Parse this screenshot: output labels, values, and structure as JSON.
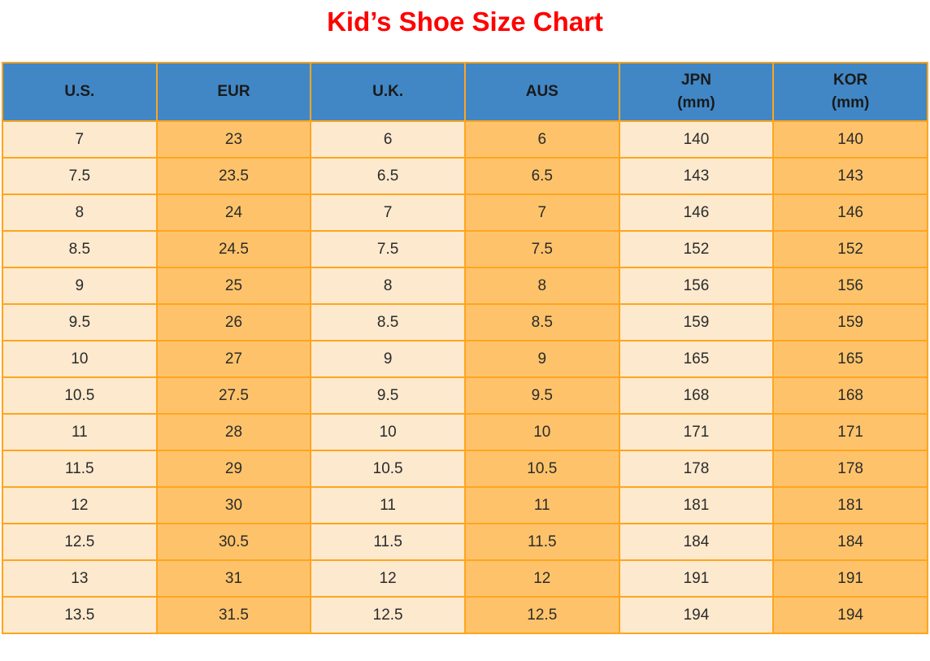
{
  "title": "Kid’s Shoe Size Chart",
  "colors": {
    "title_red": "#FF0000",
    "header_blue": "#4187C6",
    "cell_light": "#FCE9CE",
    "cell_orange": "#FEC36A",
    "border_orange": "#FFA51E",
    "header_text": "#1A1A1A",
    "cell_text": "#2B2B2B"
  },
  "chart_data": {
    "type": "table",
    "title": "Kid’s Shoe Size Chart",
    "columns": [
      "U.S.",
      "EUR",
      "U.K.",
      "AUS",
      "JPN (mm)",
      "KOR (mm)"
    ],
    "header_lines": [
      [
        "U.S."
      ],
      [
        "EUR"
      ],
      [
        "U.K."
      ],
      [
        "AUS"
      ],
      [
        "JPN",
        "(mm)"
      ],
      [
        "KOR",
        "(mm)"
      ]
    ],
    "column_stripe_pattern": [
      "light",
      "orange",
      "light",
      "orange",
      "light",
      "orange"
    ],
    "rows": [
      [
        "7",
        "23",
        "6",
        "6",
        "140",
        "140"
      ],
      [
        "7.5",
        "23.5",
        "6.5",
        "6.5",
        "143",
        "143"
      ],
      [
        "8",
        "24",
        "7",
        "7",
        "146",
        "146"
      ],
      [
        "8.5",
        "24.5",
        "7.5",
        "7.5",
        "152",
        "152"
      ],
      [
        "9",
        "25",
        "8",
        "8",
        "156",
        "156"
      ],
      [
        "9.5",
        "26",
        "8.5",
        "8.5",
        "159",
        "159"
      ],
      [
        "10",
        "27",
        "9",
        "9",
        "165",
        "165"
      ],
      [
        "10.5",
        "27.5",
        "9.5",
        "9.5",
        "168",
        "168"
      ],
      [
        "11",
        "28",
        "10",
        "10",
        "171",
        "171"
      ],
      [
        "11.5",
        "29",
        "10.5",
        "10.5",
        "178",
        "178"
      ],
      [
        "12",
        "30",
        "11",
        "11",
        "181",
        "181"
      ],
      [
        "12.5",
        "30.5",
        "11.5",
        "11.5",
        "184",
        "184"
      ],
      [
        "13",
        "31",
        "12",
        "12",
        "191",
        "191"
      ],
      [
        "13.5",
        "31.5",
        "12.5",
        "12.5",
        "194",
        "194"
      ]
    ]
  }
}
